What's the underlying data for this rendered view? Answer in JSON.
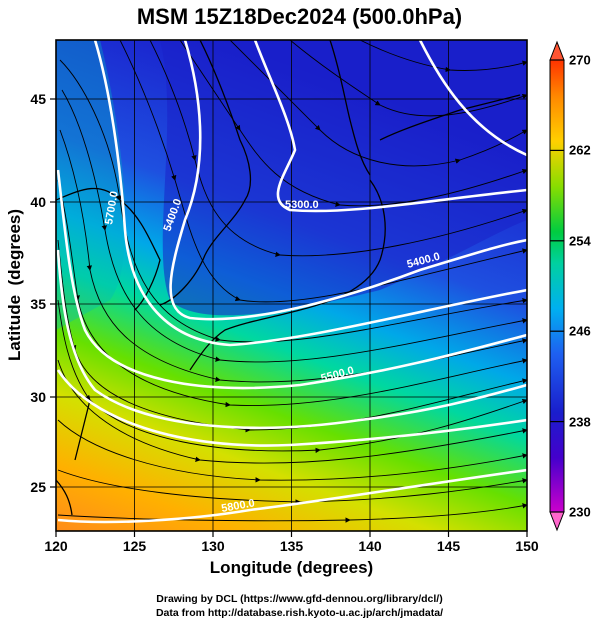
{
  "title": "MSM 15Z18Dec2024 (500.0hPa)",
  "axes": {
    "xlabel": "Longitude (degrees)",
    "ylabel": "Latitude  (degrees)",
    "x_ticks": [
      "120",
      "125",
      "130",
      "135",
      "140",
      "145",
      "150"
    ],
    "y_ticks": [
      "25",
      "30",
      "35",
      "40",
      "45"
    ],
    "x_range": [
      120,
      150
    ],
    "y_range": [
      22.4,
      47.6
    ]
  },
  "colorbar": {
    "ticks": [
      "230",
      "238",
      "246",
      "254",
      "262",
      "270"
    ],
    "range": [
      230,
      270
    ],
    "min_arrow_color": "#ff66cc",
    "max_arrow_color": "#ff5533"
  },
  "contours": [
    {
      "label": "5300.0"
    },
    {
      "label": "5400.0"
    },
    {
      "label": "5400.0"
    },
    {
      "label": "5500.0"
    },
    {
      "label": "5800.0"
    },
    {
      "label": "5700.0"
    }
  ],
  "footer": {
    "line1": "Drawing by DCL (https://www.gfd-dennou.org/library/dcl/)",
    "line2": "Data from http://database.rish.kyoto-u.ac.jp/arch/jmadata/"
  }
}
